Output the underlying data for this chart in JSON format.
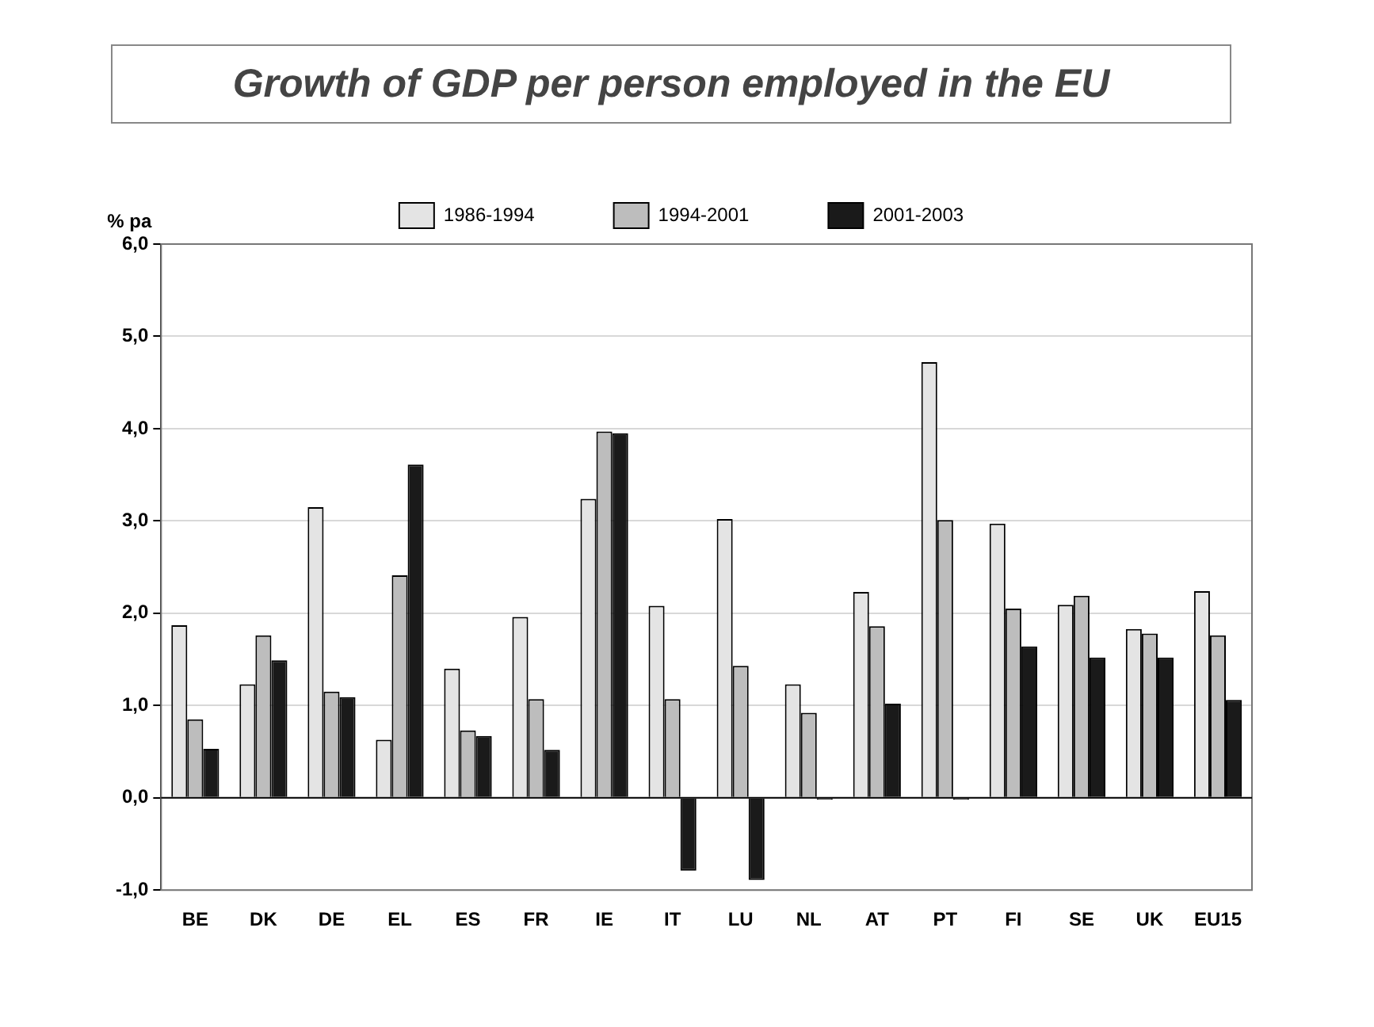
{
  "chart_data": {
    "type": "bar",
    "title": "Growth of GDP per person employed in the EU",
    "ylabel": "% pa",
    "categories": [
      "BE",
      "DK",
      "DE",
      "EL",
      "ES",
      "FR",
      "IE",
      "IT",
      "LU",
      "NL",
      "AT",
      "PT",
      "FI",
      "SE",
      "UK",
      "EU15"
    ],
    "series": [
      {
        "name": "1986-1994",
        "color": "#e4e4e4",
        "values": [
          1.87,
          1.23,
          3.15,
          0.63,
          1.4,
          1.96,
          3.24,
          2.08,
          3.02,
          1.23,
          2.23,
          4.72,
          2.97,
          2.09,
          1.83,
          2.24
        ]
      },
      {
        "name": "1994-2001",
        "color": "#bdbdbd",
        "values": [
          0.85,
          1.76,
          1.15,
          2.41,
          0.73,
          1.07,
          3.97,
          1.07,
          1.43,
          0.92,
          1.86,
          3.01,
          2.05,
          2.19,
          1.78,
          1.76
        ]
      },
      {
        "name": "2001-2003",
        "color": "#1a1a1a",
        "values": [
          0.53,
          1.49,
          1.09,
          3.61,
          0.67,
          0.52,
          3.95,
          -0.79,
          -0.89,
          -0.02,
          1.02,
          -0.02,
          1.64,
          1.52,
          1.52,
          1.06
        ]
      }
    ],
    "ylim": [
      -1,
      6
    ],
    "yticks": [
      {
        "value": -1,
        "label": "-1,0"
      },
      {
        "value": 0,
        "label": "0,0"
      },
      {
        "value": 1,
        "label": "1,0"
      },
      {
        "value": 2,
        "label": "2,0"
      },
      {
        "value": 3,
        "label": "3,0"
      },
      {
        "value": 4,
        "label": "4,0"
      },
      {
        "value": 5,
        "label": "5,0"
      },
      {
        "value": 6,
        "label": "6,0"
      }
    ],
    "grid": "y",
    "legend": "top"
  }
}
